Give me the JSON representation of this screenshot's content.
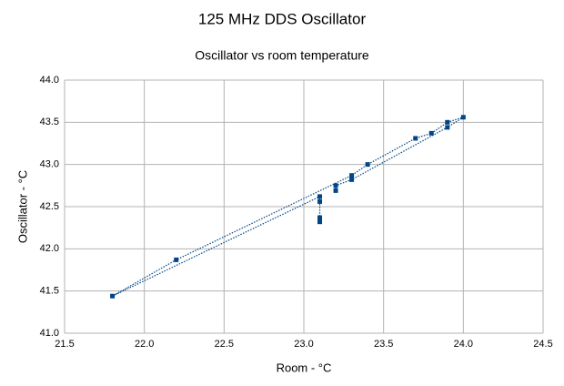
{
  "chart_data": {
    "type": "scatter-line",
    "title": "125 MHz DDS Oscillator",
    "subtitle": "Oscillator vs room temperature",
    "x_label": "Room - °C",
    "y_label": "Oscillator - °C",
    "x": [
      23.1,
      23.1,
      23.1,
      23.1,
      21.8,
      22.2,
      23.3,
      23.4,
      23.7,
      23.8,
      23.9,
      24.0,
      23.9,
      23.3,
      23.2,
      23.2
    ],
    "values": [
      42.32,
      42.37,
      42.56,
      42.62,
      41.44,
      41.87,
      42.87,
      43.0,
      43.31,
      43.37,
      43.5,
      43.56,
      43.44,
      42.82,
      42.75,
      42.69
    ],
    "color": "#004586",
    "line_style": "dotted",
    "marker": "square",
    "grid": true,
    "xlim": [
      21.5,
      24.5
    ],
    "xticks": [
      {
        "value": 21.5,
        "label": "21.5"
      },
      {
        "value": 22,
        "label": "22.0"
      },
      {
        "value": 22.5,
        "label": "22.5"
      },
      {
        "value": 23,
        "label": "23.0"
      },
      {
        "value": 23.5,
        "label": "23.5"
      },
      {
        "value": 24,
        "label": "24.0"
      },
      {
        "value": 24.5,
        "label": "24.5"
      }
    ],
    "ylim": [
      41,
      44
    ],
    "yticks": [
      {
        "value": 41,
        "label": "41.0"
      },
      {
        "value": 41.5,
        "label": "41.5"
      },
      {
        "value": 42,
        "label": "42.0"
      },
      {
        "value": 42.5,
        "label": "42.5"
      },
      {
        "value": 43,
        "label": "43.0"
      },
      {
        "value": 43.5,
        "label": "43.5"
      },
      {
        "value": 44,
        "label": "44.0"
      }
    ]
  }
}
